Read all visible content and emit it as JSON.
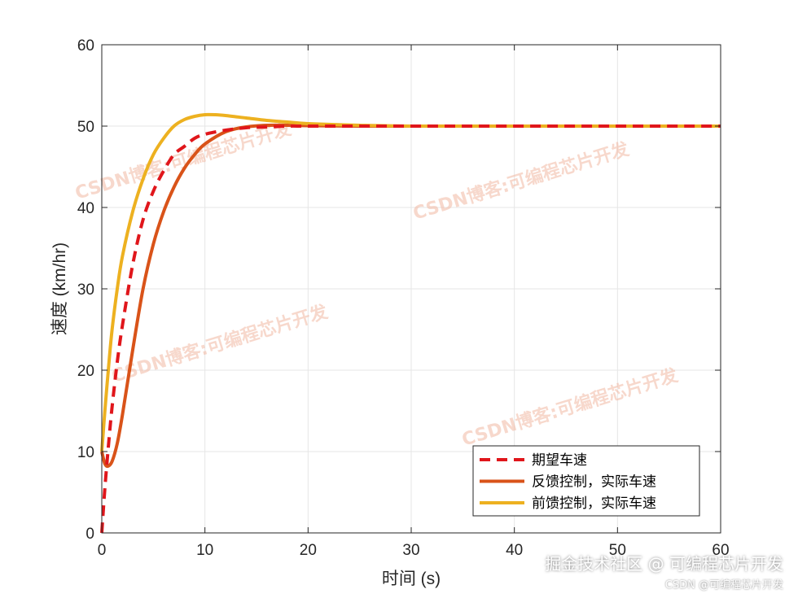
{
  "chart_data": {
    "type": "line",
    "title": "",
    "xlabel": "时间 (s)",
    "ylabel": "速度 (km/hr)",
    "xlim": [
      0,
      60
    ],
    "ylim": [
      0,
      60
    ],
    "x_ticks": [
      0,
      10,
      20,
      30,
      40,
      50,
      60
    ],
    "y_ticks": [
      0,
      10,
      20,
      30,
      40,
      50,
      60
    ],
    "grid": true,
    "legend_position": "bottom-right",
    "series": [
      {
        "name": "期望车速",
        "color": "#e0161b",
        "style": "dashed",
        "x": [
          0,
          0.3,
          0.7,
          1,
          1.5,
          2,
          3,
          4,
          5,
          6,
          7,
          8,
          9,
          10,
          12,
          14,
          16,
          18,
          20,
          25,
          30,
          40,
          50,
          60
        ],
        "y": [
          0,
          5.5,
          11.5,
          15.5,
          21,
          25.5,
          33,
          38.5,
          42,
          44.5,
          46.5,
          47.5,
          48.5,
          49,
          49.5,
          49.8,
          49.9,
          50,
          50,
          50,
          50,
          50,
          50,
          50
        ]
      },
      {
        "name": "反馈控制，实际车速",
        "color": "#d95319",
        "style": "solid",
        "x": [
          0,
          0.3,
          0.6,
          1,
          1.5,
          2,
          3,
          4,
          5,
          6,
          7,
          8,
          9,
          10,
          12,
          14,
          16,
          18,
          20,
          25,
          30,
          40,
          50,
          60
        ],
        "y": [
          10,
          8.5,
          8.2,
          8.8,
          11,
          14.5,
          22.5,
          30,
          35.5,
          39.5,
          42.5,
          44.8,
          46.5,
          47.8,
          49.3,
          49.9,
          50.1,
          50.1,
          50.05,
          50,
          50,
          50,
          50,
          50
        ]
      },
      {
        "name": "前馈控制，实际车速",
        "color": "#edb120",
        "style": "solid",
        "x": [
          0,
          0.3,
          0.7,
          1,
          1.5,
          2,
          3,
          4,
          5,
          6,
          7,
          8,
          9,
          10,
          11,
          12,
          14,
          16,
          18,
          20,
          25,
          30,
          40,
          50,
          60
        ],
        "y": [
          10,
          15,
          21,
          25,
          30,
          34,
          39.5,
          43.5,
          46.5,
          48.5,
          50,
          50.8,
          51.2,
          51.4,
          51.4,
          51.3,
          51.0,
          50.7,
          50.5,
          50.3,
          50.1,
          50,
          50,
          50,
          50
        ]
      }
    ],
    "watermarks": [
      "CSDN博客:可编程芯片开发",
      "CSDN博客:可编程芯片开发",
      "CSDN博客:可编程芯片开发",
      "CSDN博客:可编程芯片开发"
    ]
  },
  "footer": {
    "main": "掘金技术社区 @ 可编程芯片开发",
    "sub": "CSDN @可编程芯片开发"
  }
}
